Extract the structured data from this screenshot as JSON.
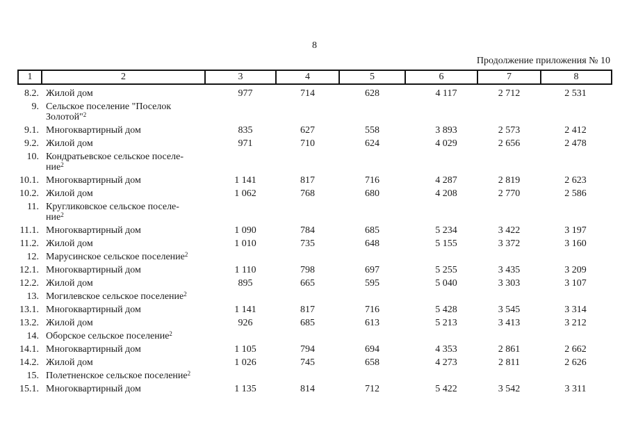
{
  "page": {
    "number": "8",
    "continuation_note": "Продолжение приложения № 10"
  },
  "table": {
    "header_cols": [
      "1",
      "2",
      "3",
      "4",
      "5",
      "6",
      "7",
      "8"
    ],
    "rows": [
      {
        "num": "8.2.",
        "name_lines": [
          "Жилой дом"
        ],
        "sup": "",
        "values": [
          "977",
          "714",
          "628",
          "4 117",
          "2 712",
          "2 531"
        ]
      },
      {
        "num": "9.",
        "name_lines": [
          "Сельское поселение \"Поселок",
          "Золотой\""
        ],
        "sup": "2",
        "values": []
      },
      {
        "num": "9.1.",
        "name_lines": [
          "Многоквартирный дом"
        ],
        "sup": "",
        "values": [
          "835",
          "627",
          "558",
          "3 893",
          "2 573",
          "2 412"
        ]
      },
      {
        "num": "9.2.",
        "name_lines": [
          "Жилой дом"
        ],
        "sup": "",
        "values": [
          "971",
          "710",
          "624",
          "4 029",
          "2 656",
          "2 478"
        ]
      },
      {
        "num": "10.",
        "name_lines": [
          "Кондратьевское сельское поселе-",
          "ние"
        ],
        "sup": "2",
        "values": []
      },
      {
        "num": "10.1.",
        "name_lines": [
          "Многоквартирный дом"
        ],
        "sup": "",
        "values": [
          "1 141",
          "817",
          "716",
          "4 287",
          "2 819",
          "2 623"
        ]
      },
      {
        "num": "10.2.",
        "name_lines": [
          "Жилой дом"
        ],
        "sup": "",
        "values": [
          "1 062",
          "768",
          "680",
          "4 208",
          "2 770",
          "2 586"
        ]
      },
      {
        "num": "11.",
        "name_lines": [
          "Кругликовское сельское поселе-",
          "ние"
        ],
        "sup": "2",
        "values": []
      },
      {
        "num": "11.1.",
        "name_lines": [
          "Многоквартирный дом"
        ],
        "sup": "",
        "values": [
          "1 090",
          "784",
          "685",
          "5 234",
          "3 422",
          "3 197"
        ]
      },
      {
        "num": "11.2.",
        "name_lines": [
          "Жилой дом"
        ],
        "sup": "",
        "values": [
          "1 010",
          "735",
          "648",
          "5 155",
          "3 372",
          "3 160"
        ]
      },
      {
        "num": "12.",
        "name_lines": [
          "Марусинское сельское поселение"
        ],
        "sup": "2",
        "values": []
      },
      {
        "num": "12.1.",
        "name_lines": [
          "Многоквартирный дом"
        ],
        "sup": "",
        "values": [
          "1 110",
          "798",
          "697",
          "5 255",
          "3 435",
          "3 209"
        ]
      },
      {
        "num": "12.2.",
        "name_lines": [
          "Жилой дом"
        ],
        "sup": "",
        "values": [
          "895",
          "665",
          "595",
          "5 040",
          "3 303",
          "3 107"
        ]
      },
      {
        "num": "13.",
        "name_lines": [
          "Могилевское сельское поселение"
        ],
        "sup": "2",
        "values": []
      },
      {
        "num": "13.1.",
        "name_lines": [
          "Многоквартирный дом"
        ],
        "sup": "",
        "values": [
          "1 141",
          "817",
          "716",
          "5 428",
          "3 545",
          "3 314"
        ]
      },
      {
        "num": "13.2.",
        "name_lines": [
          "Жилой дом"
        ],
        "sup": "",
        "values": [
          "926",
          "685",
          "613",
          "5 213",
          "3 413",
          "3 212"
        ]
      },
      {
        "num": "14.",
        "name_lines": [
          "Оборское сельское поселение"
        ],
        "sup": "2",
        "values": []
      },
      {
        "num": "14.1.",
        "name_lines": [
          "Многоквартирный дом"
        ],
        "sup": "",
        "values": [
          "1 105",
          "794",
          "694",
          "4 353",
          "2 861",
          "2 662"
        ]
      },
      {
        "num": "14.2.",
        "name_lines": [
          "Жилой дом"
        ],
        "sup": "",
        "values": [
          "1 026",
          "745",
          "658",
          "4 273",
          "2 811",
          "2 626"
        ]
      },
      {
        "num": "15.",
        "name_lines": [
          "Полетненское сельское поселение"
        ],
        "sup": "2",
        "values": []
      },
      {
        "num": "15.1.",
        "name_lines": [
          "Многоквартирный дом"
        ],
        "sup": "",
        "values": [
          "1 135",
          "814",
          "712",
          "5 422",
          "3 542",
          "3 311"
        ]
      }
    ]
  }
}
